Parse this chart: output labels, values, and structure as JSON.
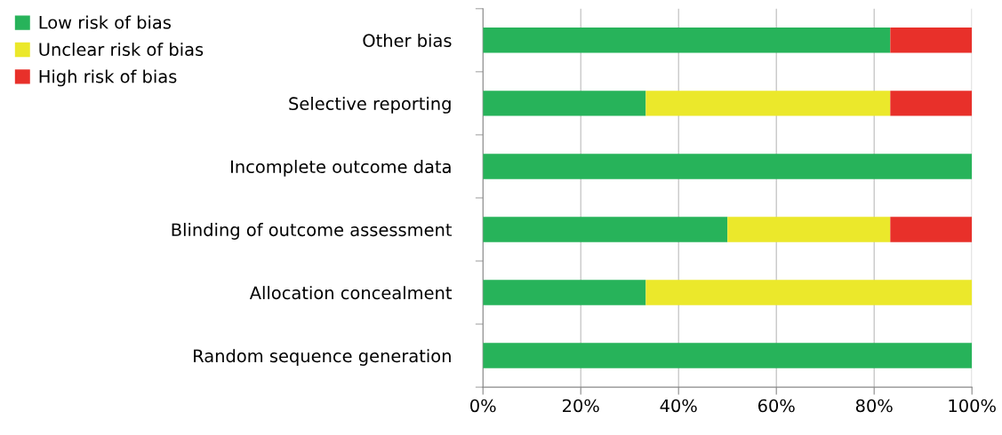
{
  "chart_data": {
    "type": "bar",
    "orientation": "horizontal",
    "stacked": true,
    "categories": [
      "Other bias",
      "Selective reporting",
      "Incomplete outcome data",
      "Blinding of outcome assessment",
      "Allocation concealment",
      "Random sequence generation"
    ],
    "series": [
      {
        "name": "Low risk of bias",
        "color": "#27b35a",
        "values": [
          83.3,
          33.3,
          100,
          50,
          33.3,
          100
        ]
      },
      {
        "name": "Unclear risk of bias",
        "color": "#ebe82b",
        "values": [
          0,
          50,
          0,
          33.3,
          66.7,
          0
        ]
      },
      {
        "name": "High risk of bias",
        "color": "#e8302a",
        "values": [
          16.7,
          16.7,
          0,
          16.7,
          0,
          0
        ]
      }
    ],
    "xlim": [
      0,
      100
    ],
    "xticks": [
      {
        "value": 0,
        "label": "0%"
      },
      {
        "value": 20,
        "label": "20%"
      },
      {
        "value": 40,
        "label": "40%"
      },
      {
        "value": 60,
        "label": "60%"
      },
      {
        "value": 80,
        "label": "80%"
      },
      {
        "value": 100,
        "label": "100%"
      }
    ],
    "grid": "x",
    "legend": "top left"
  }
}
